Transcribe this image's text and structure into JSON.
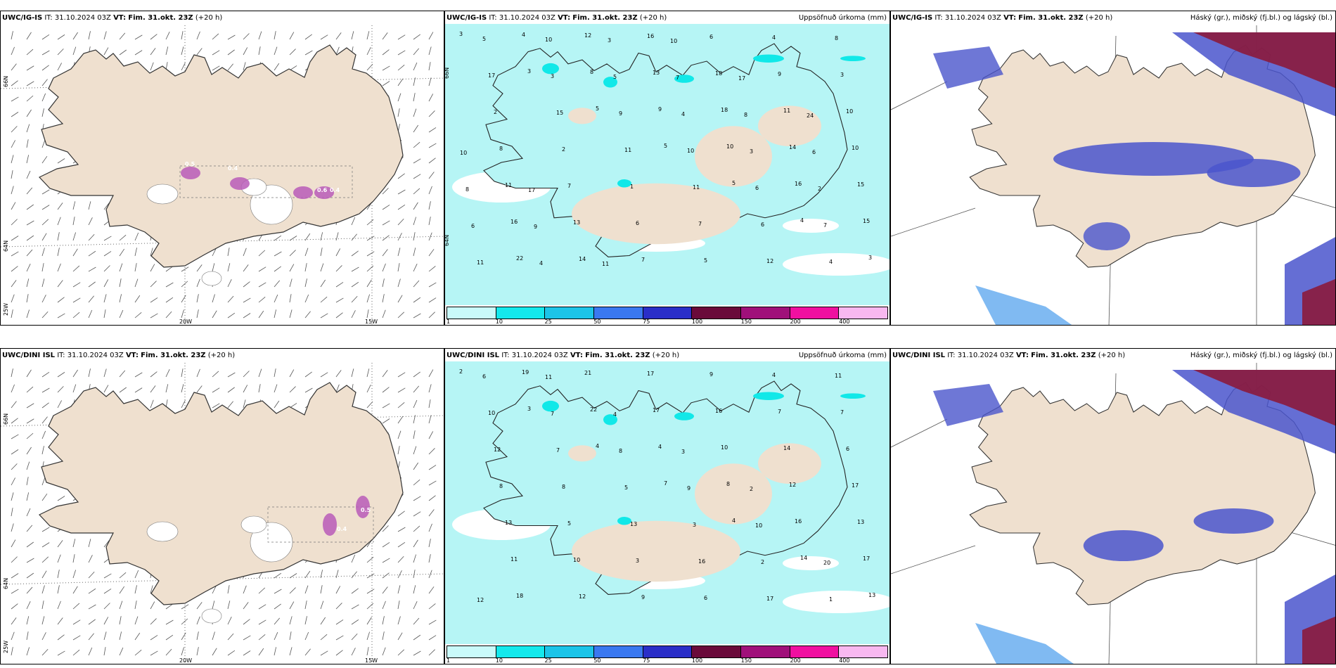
{
  "colors": {
    "land": "#efe0cf",
    "precip_light": "#b6f5f5",
    "precip_cyan": "#11e8e8",
    "cloud_blue": "#4a55cc",
    "cloud_dark": "#8b1a3c",
    "snow_purple": "#b85ab8"
  },
  "rows": [
    {
      "model": "UWC/IG-IS",
      "it": "IT: 31.10.2024 03Z",
      "vt_label": "VT:",
      "vt": "Fim. 31.okt. 23Z",
      "step": "(+20 h)"
    },
    {
      "model": "UWC/DINI ISL",
      "it": "IT: 31.10.2024 03Z",
      "vt_label": "VT:",
      "vt": "Fim. 31.okt. 23Z",
      "step": "(+20 h)"
    }
  ],
  "precip_title": "Uppsöfnuð úrkoma (mm)",
  "cloud_title": "Háský (gr.), miðský (fj.bl.) og lágský (bl.)",
  "legend": {
    "ticks": [
      "1",
      "10",
      "25",
      "50",
      "75",
      "100",
      "150",
      "200",
      "400"
    ],
    "colors": [
      "#c9fafa",
      "#14e8ec",
      "#1cc4e8",
      "#3a78f0",
      "#2a2ec8",
      "#6a0a3a",
      "#a0107a",
      "#f010a0",
      "#f8b8f0"
    ]
  },
  "axes": {
    "lon": [
      "20W",
      "15W"
    ],
    "lat_top": [
      "66N",
      "64N",
      "25W"
    ],
    "lat_mid": [
      "66N",
      "64N"
    ]
  },
  "wind_values_top": [
    "0.4",
    "0.6",
    "0.4",
    "0.5"
  ],
  "wind_values_bottom": [
    "0.4",
    "0.5"
  ],
  "precip_numbers_top": [
    "3",
    "3",
    "5",
    "5",
    "5",
    "4",
    "3",
    "4",
    "8",
    "9",
    "10",
    "16",
    "15",
    "22",
    "12",
    "13",
    "18",
    "14",
    "15",
    "16",
    "14",
    "16",
    "18",
    "11",
    "10",
    "11",
    "13",
    "7",
    "6",
    "9",
    "10",
    "8",
    "7",
    "6",
    "5",
    "4",
    "3",
    "2",
    "2",
    "1",
    "7",
    "12",
    "8",
    "17",
    "15",
    "11",
    "11",
    "6",
    "4",
    "5",
    "3",
    "9",
    "10",
    "6",
    "7",
    "11",
    "10",
    "5",
    "4",
    "3",
    "2",
    "6",
    "4",
    "3",
    "7",
    "8",
    "6",
    "8",
    "9",
    "11",
    "10",
    "17",
    "24",
    "10",
    "17"
  ],
  "precip_numbers_bottom": [
    "2",
    "3",
    "4",
    "7",
    "4",
    "14",
    "13",
    "19",
    "22",
    "4",
    "8",
    "16",
    "17",
    "18",
    "21",
    "17",
    "10",
    "12",
    "13",
    "11",
    "12",
    "17",
    "16",
    "14",
    "17",
    "13",
    "10",
    "9",
    "9",
    "7",
    "6",
    "8",
    "5",
    "3",
    "6",
    "4",
    "7",
    "12",
    "8",
    "13",
    "16",
    "17",
    "11",
    "10",
    "7",
    "5",
    "3",
    "2",
    "1",
    "6",
    "7",
    "8",
    "9",
    "10",
    "20",
    "12",
    "11",
    "4",
    "3",
    "2"
  ]
}
